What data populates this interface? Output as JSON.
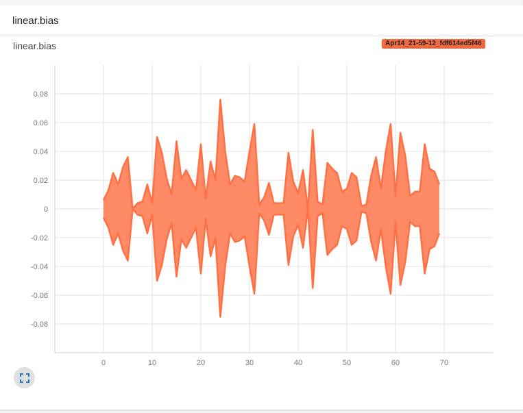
{
  "card": {
    "header_title": "linear.bias",
    "chart_title": "linear.bias",
    "run_label": "Apr14_21-59-12_fdf614ed5f46"
  },
  "icons": {
    "expand": "fullscreen-expand-icon"
  },
  "colors": {
    "fill": "#ff8a65",
    "stroke": "#ff7043",
    "badge": "#f4683f",
    "icon": "#1976d2"
  },
  "chart_data": {
    "type": "area",
    "title": "linear.bias",
    "xlabel": "",
    "ylabel": "",
    "xlim": [
      -10,
      80
    ],
    "ylim": [
      -0.1,
      0.1
    ],
    "x_ticks": [
      0,
      10,
      20,
      30,
      40,
      50,
      60,
      70
    ],
    "y_ticks": [
      0.08,
      0.06,
      0.04,
      0.02,
      0,
      -0.02,
      -0.04,
      -0.06,
      -0.08
    ],
    "grid": true,
    "series": [
      {
        "x": [
          0,
          1,
          2,
          3,
          4,
          5,
          6,
          7,
          8,
          9,
          10,
          11,
          12,
          13,
          14,
          15,
          16,
          17,
          18,
          19,
          20,
          21,
          22,
          23,
          24,
          25,
          26,
          27,
          28,
          29,
          30,
          31,
          32,
          33,
          34,
          35,
          36,
          37,
          38,
          39,
          40,
          41,
          42,
          43,
          44,
          45,
          46,
          47,
          48,
          49,
          50,
          51,
          52,
          53,
          54,
          55,
          56,
          57,
          58,
          59,
          60,
          61,
          62,
          63,
          64,
          65,
          66,
          67,
          68,
          69
        ],
        "upper": [
          0.006,
          0.013,
          0.025,
          0.017,
          0.029,
          0.036,
          0.0,
          0.004,
          0.005,
          0.017,
          0.004,
          0.05,
          0.039,
          0.021,
          0.01,
          0.047,
          0.021,
          0.027,
          0.02,
          0.013,
          0.045,
          0.007,
          0.033,
          0.02,
          0.076,
          0.04,
          0.017,
          0.023,
          0.022,
          0.019,
          0.04,
          0.059,
          0.003,
          0.008,
          0.018,
          0.004,
          0.004,
          0.004,
          0.039,
          0.019,
          0.011,
          0.027,
          0.0,
          0.055,
          0.005,
          0.003,
          0.032,
          0.028,
          0.025,
          0.012,
          0.014,
          0.025,
          0.022,
          0.002,
          0.003,
          0.023,
          0.036,
          0.014,
          0.04,
          0.059,
          0.009,
          0.053,
          0.037,
          0.009,
          0.012,
          0.012,
          0.045,
          0.028,
          0.026,
          0.017
        ],
        "lower": [
          -0.006,
          -0.013,
          -0.025,
          -0.017,
          -0.029,
          -0.036,
          0.0,
          -0.004,
          -0.005,
          -0.017,
          -0.004,
          -0.05,
          -0.039,
          -0.021,
          -0.01,
          -0.047,
          -0.021,
          -0.027,
          -0.02,
          -0.013,
          -0.045,
          -0.007,
          -0.033,
          -0.02,
          -0.075,
          -0.04,
          -0.017,
          -0.023,
          -0.022,
          -0.019,
          -0.04,
          -0.059,
          -0.003,
          -0.008,
          -0.018,
          -0.004,
          -0.004,
          -0.004,
          -0.039,
          -0.019,
          -0.011,
          -0.027,
          0.0,
          -0.055,
          -0.005,
          -0.003,
          -0.032,
          -0.028,
          -0.025,
          -0.012,
          -0.014,
          -0.025,
          -0.022,
          -0.002,
          -0.003,
          -0.023,
          -0.036,
          -0.014,
          -0.04,
          -0.059,
          -0.009,
          -0.053,
          -0.037,
          -0.009,
          -0.012,
          -0.012,
          -0.045,
          -0.028,
          -0.026,
          -0.017
        ]
      }
    ]
  }
}
